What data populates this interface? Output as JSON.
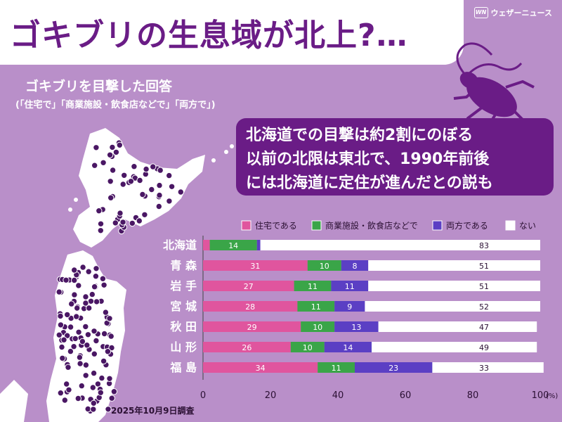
{
  "header": {
    "title": "ゴキブリの生息域が北上?…",
    "brand": "ウェザーニュース",
    "brand_mark": "WN"
  },
  "subtitle": "ゴキブリを目撃した回答",
  "subnote": "(「住宅で」「商業施設・飲食店などで」「両方で」)",
  "callout": [
    "北海道での目撃は約2割にのぼる",
    "以前の北限は東北で、1990年前後",
    "には北海道に定住が進んだとの説も"
  ],
  "survey_date": "2025年10月9日調査",
  "colors": {
    "background": "#b98fc9",
    "title_purple": "#6a1c86",
    "jutaku": "#e0559e",
    "shogyo": "#3aa548",
    "ryoho": "#5b3fc4",
    "nai": "#ffffff",
    "map_dot": "#4a1764"
  },
  "chart_data": {
    "type": "bar",
    "orientation": "horizontal",
    "stacked": true,
    "categories": [
      "北海道",
      "青森",
      "岩手",
      "宮城",
      "秋田",
      "山形",
      "福島"
    ],
    "category_display": [
      "北海道",
      "青 森",
      "岩 手",
      "宮 城",
      "秋 田",
      "山 形",
      "福 島"
    ],
    "series": [
      {
        "name": "住宅である",
        "values": [
          2,
          31,
          27,
          28,
          29,
          26,
          34
        ]
      },
      {
        "name": "商業施設・飲食店などで",
        "values": [
          14,
          10,
          11,
          11,
          10,
          10,
          11
        ]
      },
      {
        "name": "両方である",
        "values": [
          1,
          8,
          11,
          9,
          13,
          14,
          23
        ]
      },
      {
        "name": "ない",
        "values": [
          83,
          51,
          51,
          52,
          47,
          49,
          33
        ]
      }
    ],
    "xlim": [
      0,
      100
    ],
    "xticks": [
      "0",
      "20",
      "40",
      "60",
      "80",
      "100"
    ],
    "xunit": "(%)",
    "legend_position": "top"
  }
}
